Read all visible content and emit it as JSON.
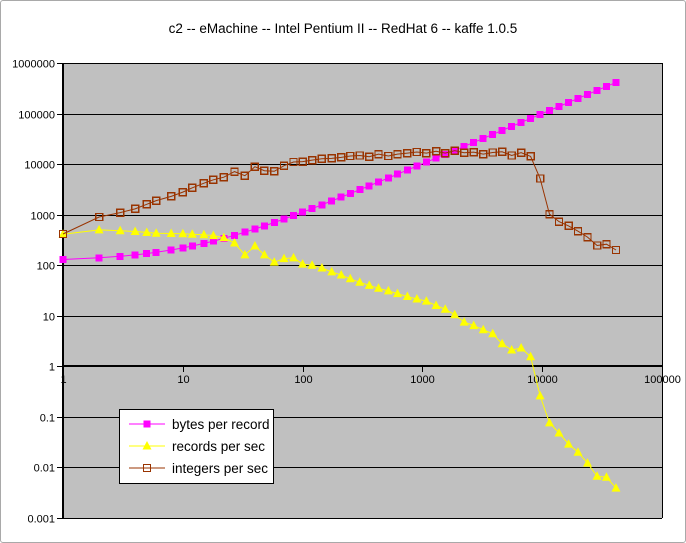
{
  "chart_data": {
    "type": "line",
    "title": "c2 -- eMachine -- Intel Pentium II -- RedHat 6 -- kaffe 1.0.5",
    "x_scale": "log",
    "y_scale": "log",
    "xlim": [
      1,
      100000
    ],
    "ylim": [
      0.001,
      1000000
    ],
    "grid": "horizontal-decades",
    "legend_position": "inside-bottom-left",
    "x_tick_labels": [
      "1",
      "10",
      "100",
      "1000",
      "10000",
      "100000"
    ],
    "y_tick_labels": [
      "0.001",
      "0.01",
      "0.1",
      "1",
      "10",
      "100",
      "1000",
      "10000",
      "100000",
      "1000000"
    ],
    "plot_bg_color": "#c0c0c0",
    "x": [
      1,
      2,
      3,
      4,
      5,
      6,
      8,
      10,
      12,
      15,
      18,
      22,
      27,
      33,
      40,
      48,
      58,
      70,
      84,
      100,
      120,
      145,
      175,
      210,
      250,
      300,
      360,
      430,
      520,
      620,
      750,
      900,
      1080,
      1300,
      1550,
      1860,
      2230,
      2680,
      3220,
      3860,
      4630,
      5560,
      6670,
      8000,
      9600,
      11500,
      13800,
      16600,
      19900,
      23900,
      28700,
      34400,
      41300
    ],
    "series": [
      {
        "name": "bytes per record",
        "color": "#ff00ff",
        "marker": "square",
        "values": [
          130,
          140,
          150,
          160,
          170,
          180,
          200,
          220,
          240,
          270,
          300,
          340,
          390,
          450,
          520,
          600,
          700,
          820,
          960,
          1120,
          1320,
          1570,
          1870,
          2220,
          2620,
          3120,
          3720,
          4420,
          5320,
          6320,
          7620,
          9120,
          10920,
          13120,
          15620,
          18720,
          22420,
          26920,
          32320,
          38720,
          46420,
          55720,
          66820,
          80120,
          96120,
          115120,
          138120,
          166120,
          199120,
          239120,
          287120,
          344120,
          413120
        ]
      },
      {
        "name": "records per sec",
        "color": "#ffff00",
        "marker": "triangle",
        "values": [
          410,
          500,
          480,
          465,
          445,
          430,
          425,
          420,
          410,
          400,
          385,
          350,
          275,
          160,
          240,
          160,
          115,
          135,
          140,
          105,
          100,
          88,
          74,
          64,
          54,
          46,
          40,
          35,
          31,
          27.5,
          24,
          21.5,
          19.5,
          16,
          13.5,
          10.5,
          7.5,
          6.4,
          5.3,
          4.4,
          2.8,
          2.1,
          2.3,
          1.55,
          0.26,
          0.076,
          0.048,
          0.029,
          0.02,
          0.0122,
          0.0067,
          0.0064,
          0.0039
        ]
      },
      {
        "name": "integers per sec",
        "color": "#993300",
        "marker": "square-open",
        "values": [
          415,
          900,
          1100,
          1300,
          1600,
          1900,
          2300,
          2800,
          3400,
          4200,
          4900,
          5500,
          7100,
          5900,
          8900,
          7400,
          7200,
          9300,
          11000,
          11200,
          12000,
          12800,
          13000,
          13600,
          14500,
          14800,
          14000,
          15800,
          14500,
          15800,
          16500,
          17400,
          16500,
          18000,
          16500,
          18500,
          16800,
          17300,
          15800,
          17000,
          17500,
          14800,
          16800,
          14200,
          5200,
          1020,
          730,
          600,
          470,
          360,
          245,
          260,
          200
        ]
      }
    ]
  }
}
